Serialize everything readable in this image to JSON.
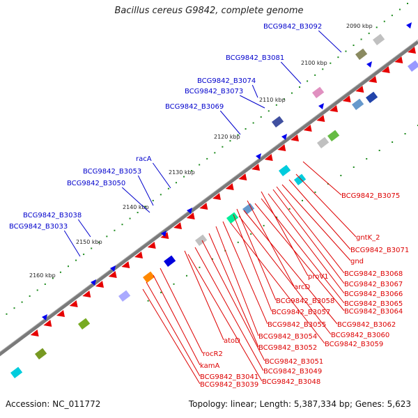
{
  "title": "Bacillus cereus G9842, complete genome",
  "footer": {
    "accession": "Accession: NC_011772",
    "summary": "Topology: linear; Length: 5,387,334 bp; Genes: 5,623"
  },
  "colors": {
    "upper_labels": "#0000cc",
    "lower_labels": "#dd0000",
    "backbone": "#7a7a7a",
    "tick_dots": "#1c8a1c"
  },
  "ticks": [
    "2090 kbp",
    "2100 kbp",
    "2110 kbp",
    "2120 kbp",
    "2130 kbp",
    "2140 kbp",
    "2150 kbp",
    "2160 kbp"
  ],
  "upper_labels": [
    "BCG9842_B3092",
    "BCG9842_B3081",
    "BCG9842_B3074",
    "BCG9842_B3073",
    "BCG9842_B3069",
    "racA",
    "BCG9842_B3053",
    "BCG9842_B3050",
    "BCG9842_B3038",
    "BCG9842_B3033"
  ],
  "lower_labels": [
    "BCG9842_B3075",
    "gntK_2",
    "BCG9842_B3071",
    "gnd",
    "proV1",
    "BCG9842_B3068",
    "BCG9842_B3067",
    "arcD",
    "BCG9842_B3066",
    "BCG9842_B3065",
    "BCG9842_B3058",
    "BCG9842_B3064",
    "BCG9842_B3057",
    "BCG9842_B3062",
    "BCG9842_B3055",
    "BCG9842_B3060",
    "BCG9842_B3054",
    "BCG9842_B3059",
    "atoD",
    "BCG9842_B3052",
    "rocR2",
    "BCG9842_B3051",
    "kamA",
    "BCG9842_B3049",
    "BCG9842_B3041",
    "BCG9842_B3048",
    "BCG9842_B3039"
  ]
}
